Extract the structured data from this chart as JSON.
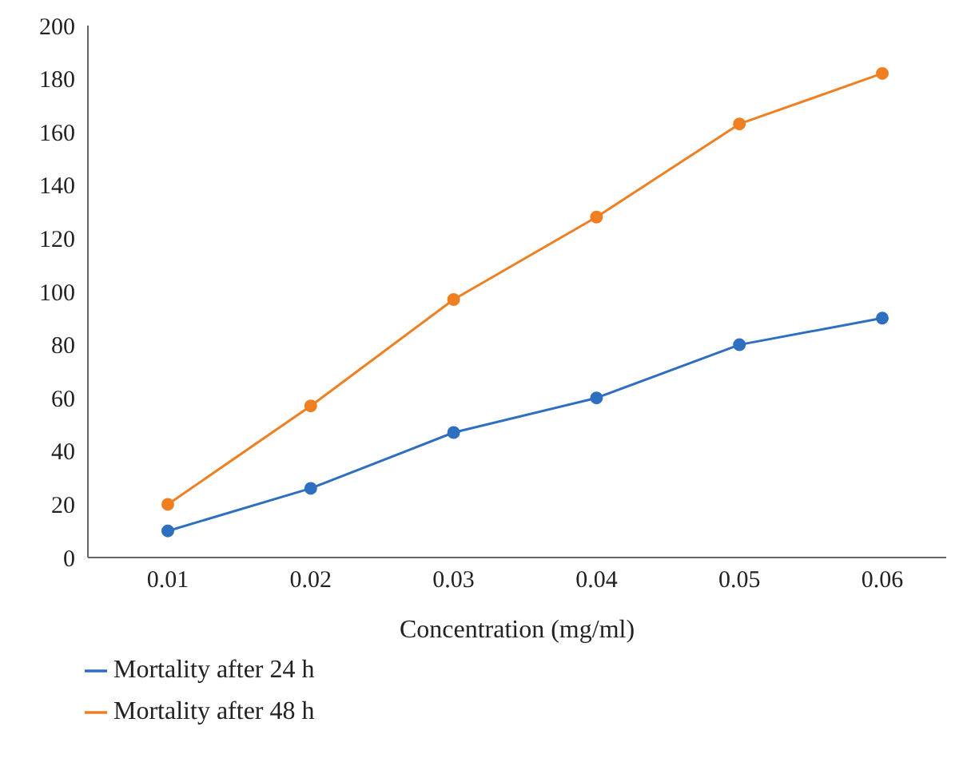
{
  "chart_data": {
    "type": "line",
    "xlabel": "Concentration (mg/ml)",
    "categories": [
      "0.01",
      "0.02",
      "0.03",
      "0.04",
      "0.05",
      "0.06"
    ],
    "series": [
      {
        "name": "Mortality after 24 h",
        "color": "#2e6fc0",
        "values": [
          10,
          26,
          47,
          60,
          80,
          90
        ]
      },
      {
        "name": "Mortality after 48 h",
        "color": "#f07f22",
        "values": [
          20,
          57,
          97,
          128,
          163,
          182
        ]
      }
    ],
    "ylim": [
      0,
      200
    ],
    "yticks": [
      0,
      20,
      40,
      60,
      80,
      100,
      120,
      140,
      160,
      180,
      200
    ],
    "grid": false,
    "legend": "bottom left",
    "marker": "circle",
    "line_style": "solid"
  }
}
